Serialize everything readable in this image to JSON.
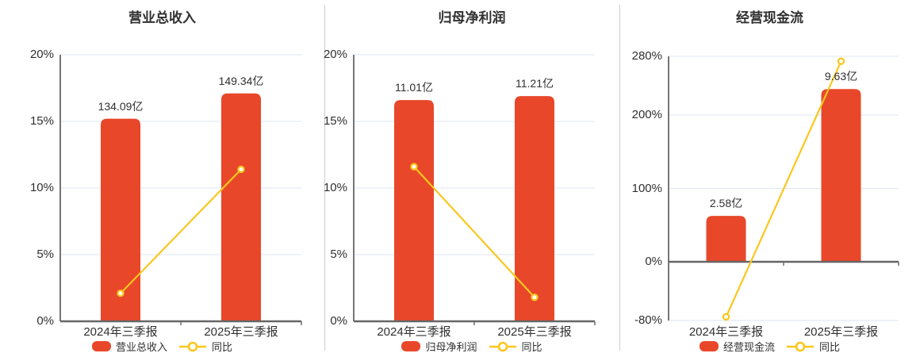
{
  "colors": {
    "bar": "#e8472a",
    "line": "#fac71d",
    "grid": "#dfe4f1",
    "axis": "#666666",
    "text": "#303030",
    "separator": "#cccccc",
    "background": "#ffffff",
    "marker_fill": "#ffffff"
  },
  "chart_data": [
    {
      "type": "bar",
      "title": "营业总收入",
      "categories": [
        "2024年三季报",
        "2025年三季报"
      ],
      "bar_series": {
        "name": "营业总收入",
        "unit": "亿",
        "values": [
          134.09,
          149.34
        ],
        "labels": [
          "134.09亿",
          "149.34亿"
        ]
      },
      "line_series": {
        "name": "同比",
        "values_pct": [
          2.1,
          11.4
        ]
      },
      "y_axis": {
        "range": [
          0,
          20
        ],
        "ticks_pct": [
          0,
          5,
          10,
          15,
          20
        ],
        "tick_labels": [
          "0%",
          "5%",
          "10%",
          "15%",
          "20%"
        ]
      },
      "bar_tops_axis_pct": [
        15.2,
        17.1
      ],
      "grid": true,
      "legend_position": "bottom"
    },
    {
      "type": "bar",
      "title": "归母净利润",
      "categories": [
        "2024年三季报",
        "2025年三季报"
      ],
      "bar_series": {
        "name": "归母净利润",
        "unit": "亿",
        "values": [
          11.01,
          11.21
        ],
        "labels": [
          "11.01亿",
          "11.21亿"
        ]
      },
      "line_series": {
        "name": "同比",
        "values_pct": [
          11.6,
          1.8
        ]
      },
      "y_axis": {
        "range": [
          0,
          20
        ],
        "ticks_pct": [
          0,
          5,
          10,
          15,
          20
        ],
        "tick_labels": [
          "0%",
          "5%",
          "10%",
          "15%",
          "20%"
        ]
      },
      "bar_tops_axis_pct": [
        16.6,
        16.9
      ],
      "grid": true,
      "legend_position": "bottom"
    },
    {
      "type": "bar",
      "title": "经营现金流",
      "categories": [
        "2024年三季报",
        "2025年三季报"
      ],
      "bar_series": {
        "name": "经营现金流",
        "unit": "亿",
        "values": [
          2.58,
          9.63
        ],
        "labels": [
          "2.58亿",
          "9.63亿"
        ]
      },
      "line_series": {
        "name": "同比",
        "values_pct": [
          -75,
          273.3
        ]
      },
      "y_axis": {
        "range": [
          -80,
          280
        ],
        "ticks_pct": [
          -80,
          0,
          100,
          200,
          280
        ],
        "tick_labels": [
          "-80%",
          "0%",
          "100%",
          "200%",
          "280%"
        ]
      },
      "bar_tops_axis_pct": [
        62.6,
        235.4
      ],
      "grid": true,
      "legend_position": "bottom"
    }
  ]
}
